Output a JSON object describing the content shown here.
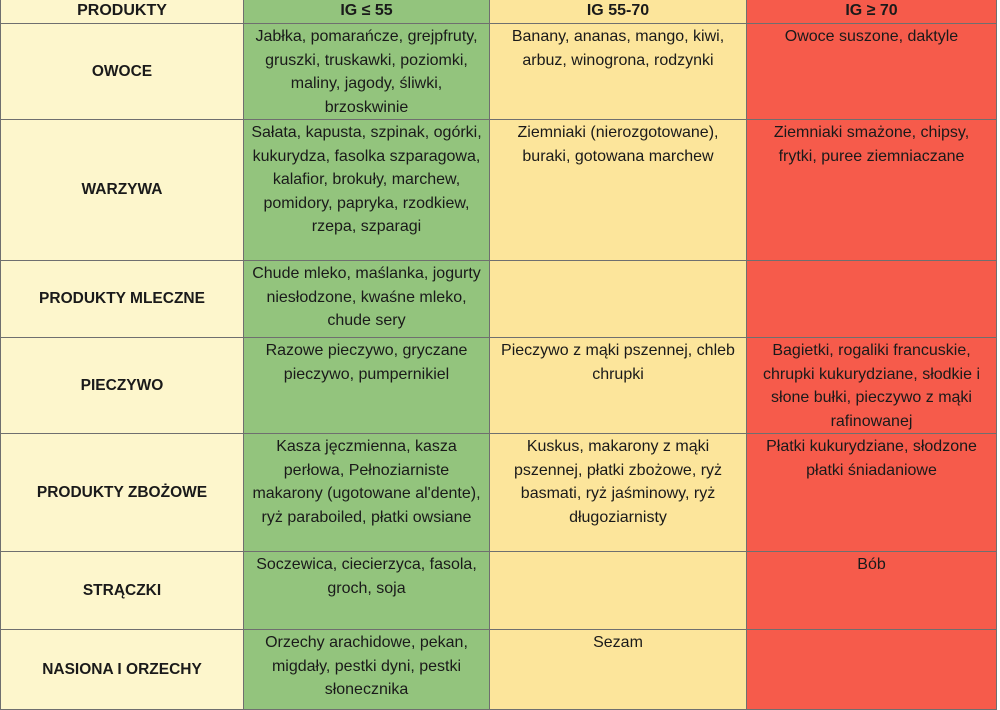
{
  "header": {
    "products": "PRODUKTY",
    "low": "IG ≤ 55",
    "mid": "IG 55-70",
    "high": "IG ≥ 70"
  },
  "colors": {
    "category_bg": "#fdf6cc",
    "low_bg": "#93c47d",
    "mid_bg": "#fce59b",
    "high_bg": "#f65b4b"
  },
  "rows": [
    {
      "category": "OWOCE",
      "low": "Jabłka, pomarańcze, grejpfruty, gruszki, truskawki, poziomki, maliny, jagody, śliwki, brzoskwinie",
      "mid": "Banany, ananas, mango, kiwi, arbuz, winogrona, rodzynki",
      "high": "Owoce suszone, daktyle"
    },
    {
      "category": "WARZYWA",
      "low": "Sałata, kapusta, szpinak, ogórki, kukurydza, fasolka szparagowa, kalafior, brokuły, marchew, pomidory, papryka, rzodkiew, rzepa, szparagi",
      "mid": "Ziemniaki (nierozgotowane), buraki, gotowana marchew",
      "high": "Ziemniaki smażone, chipsy, frytki, puree ziemniaczane"
    },
    {
      "category": "PRODUKTY MLECZNE",
      "low": "Chude mleko, maślanka, jogurty niesłodzone, kwaśne mleko, chude sery",
      "mid": "",
      "high": ""
    },
    {
      "category": "PIECZYWO",
      "low": "Razowe pieczywo, gryczane pieczywo, pumpernikiel",
      "mid": "Pieczywo z mąki pszennej, chleb chrupki",
      "high": "Bagietki, rogaliki francuskie, chrupki kukurydziane, słodkie i słone bułki, pieczywo z mąki rafinowanej"
    },
    {
      "category": "PRODUKTY ZBOŻOWE",
      "low": "Kasza jęczmienna, kasza perłowa, Pełnoziarniste makarony (ugotowane al'dente), ryż paraboiled, płatki owsiane",
      "mid": "Kuskus, makarony z mąki pszennej, płatki zbożowe, ryż basmati, ryż jaśminowy, ryż długoziarnisty",
      "high": "Płatki kukurydziane, słodzone płatki śniadaniowe"
    },
    {
      "category": "STRĄCZKI",
      "low": "Soczewica, ciecierzyca, fasola, groch, soja",
      "mid": "",
      "high": "Bób"
    },
    {
      "category": "NASIONA I ORZECHY",
      "low": "Orzechy arachidowe, pekan, migdały, pestki dyni, pestki słonecznika",
      "mid": "Sezam",
      "high": ""
    }
  ]
}
